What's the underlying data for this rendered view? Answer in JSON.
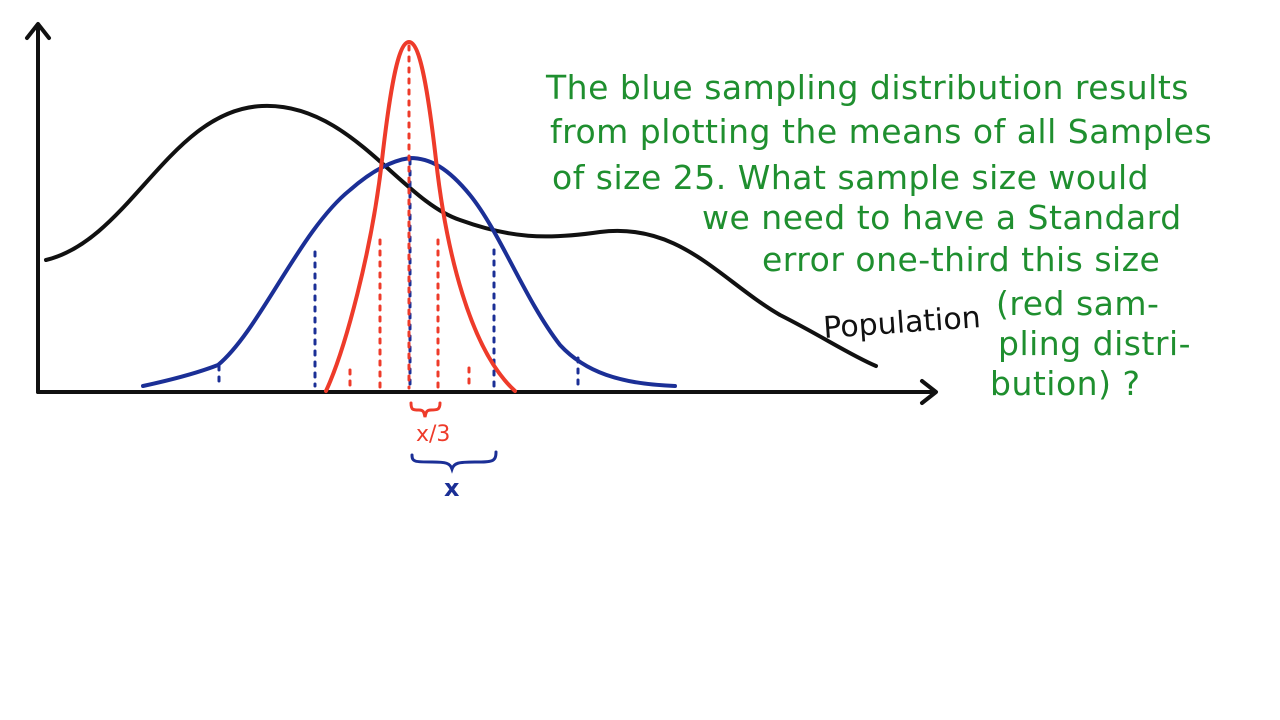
{
  "colors": {
    "population": "#111111",
    "blue_distribution": "#1b2f96",
    "red_distribution": "#ee3b2a",
    "question_text": "#1f8f2f"
  },
  "population_label": "Population",
  "red_width_label": "x/3",
  "blue_width_label": "x",
  "question_lines": [
    "The blue sampling distribution results",
    "from plotting the means of all Samples",
    "of size 25. What sample size would",
    "we need to have a Standard",
    "error one-third this size",
    "(red sam-",
    "pling distri-",
    "bution) ?"
  ]
}
